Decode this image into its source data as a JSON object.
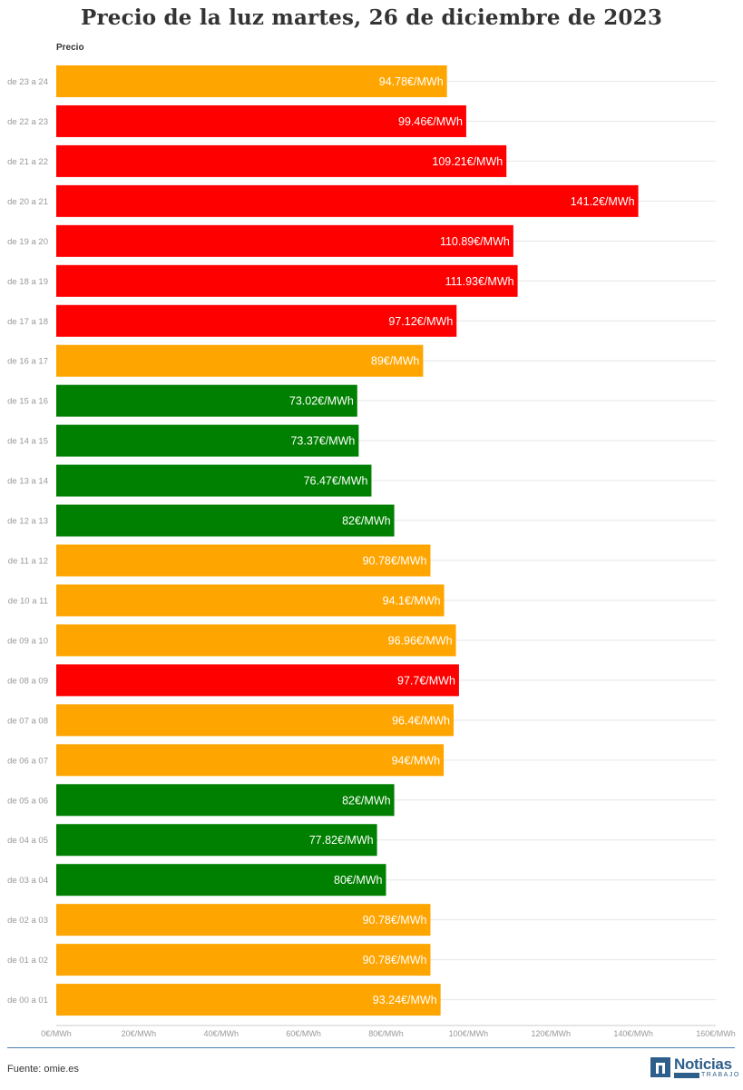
{
  "title": "Precio de la luz martes, 26 de diciembre de 2023",
  "source": "Fuente: omie.es",
  "logo": {
    "name": "Noticias",
    "sub": "TRABAJO"
  },
  "colors": {
    "high": "#ff0000",
    "medium": "#ffa500",
    "low": "#008000",
    "grid": "#e6e6e6",
    "axis_text": "#999999"
  },
  "chart_data": {
    "type": "bar",
    "orientation": "horizontal",
    "title": "Precio de la luz martes, 26 de diciembre de 2023",
    "ylabel": "Precio",
    "xlabel": "",
    "xlim": [
      0,
      160
    ],
    "x_ticks": [
      "0€/MWh",
      "20€/MWh",
      "40€/MWh",
      "60€/MWh",
      "80€/MWh",
      "100€/MWh",
      "120€/MWh",
      "140€/MWh",
      "160€/MWh"
    ],
    "categories": [
      "de 23 a 24",
      "de 22 a 23",
      "de 21 a 22",
      "de 20 a 21",
      "de 19 a 20",
      "de 18 a 19",
      "de 17 a 18",
      "de 16 a 17",
      "de 15 a 16",
      "de 14 a 15",
      "de 13 a 14",
      "de 12 a 13",
      "de 11 a 12",
      "de 10 a 11",
      "de 09 a 10",
      "de 08 a 09",
      "de 07 a 08",
      "de 06 a 07",
      "de 05 a 06",
      "de 04 a 05",
      "de 03 a 04",
      "de 02 a 03",
      "de 01 a 02",
      "de 00 a 01"
    ],
    "values": [
      94.78,
      99.46,
      109.21,
      141.2,
      110.89,
      111.93,
      97.12,
      89,
      73.02,
      73.37,
      76.47,
      82,
      90.78,
      94.1,
      96.96,
      97.7,
      96.4,
      94,
      82,
      77.82,
      80,
      90.78,
      90.78,
      93.24
    ],
    "labels": [
      "94.78€/MWh",
      "99.46€/MWh",
      "109.21€/MWh",
      "141.2€/MWh",
      "110.89€/MWh",
      "111.93€/MWh",
      "97.12€/MWh",
      "89€/MWh",
      "73.02€/MWh",
      "73.37€/MWh",
      "76.47€/MWh",
      "82€/MWh",
      "90.78€/MWh",
      "94.1€/MWh",
      "96.96€/MWh",
      "97.7€/MWh",
      "96.4€/MWh",
      "94€/MWh",
      "82€/MWh",
      "77.82€/MWh",
      "80€/MWh",
      "90.78€/MWh",
      "90.78€/MWh",
      "93.24€/MWh"
    ],
    "bar_colors": [
      "#ffa500",
      "#ff0000",
      "#ff0000",
      "#ff0000",
      "#ff0000",
      "#ff0000",
      "#ff0000",
      "#ffa500",
      "#008000",
      "#008000",
      "#008000",
      "#008000",
      "#ffa500",
      "#ffa500",
      "#ffa500",
      "#ff0000",
      "#ffa500",
      "#ffa500",
      "#008000",
      "#008000",
      "#008000",
      "#ffa500",
      "#ffa500",
      "#ffa500"
    ],
    "grid": true,
    "legend": "none"
  }
}
